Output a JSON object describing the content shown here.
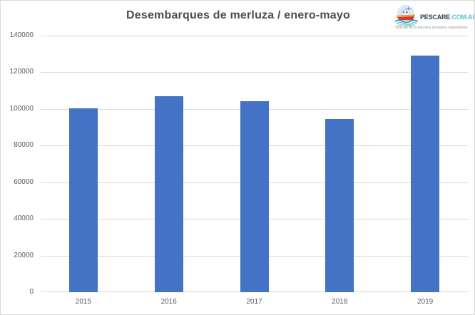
{
  "title": "Desembarques de merluza / enero-mayo",
  "logo": {
    "brand_primary": "PESCARE",
    "brand_secondary": ".COM.AR",
    "tagline": "Noticias de la industria pesquera marplatense",
    "brand_primary_color": "#2e3f50",
    "brand_secondary_color": "#56c5d0"
  },
  "chart_data": {
    "type": "bar",
    "categories": [
      "2015",
      "2016",
      "2017",
      "2018",
      "2019"
    ],
    "values": [
      100500,
      107000,
      104200,
      94600,
      129300
    ],
    "title": "Desembarques de merluza / enero-mayo",
    "xlabel": "",
    "ylabel": "",
    "ylim": [
      0,
      140000
    ],
    "yticks": [
      0,
      20000,
      40000,
      60000,
      80000,
      100000,
      120000,
      140000
    ],
    "grid": true,
    "legend": false,
    "bar_color": "#4472c4",
    "gridline_color": "#d9d9d9",
    "text_color": "#595959"
  }
}
